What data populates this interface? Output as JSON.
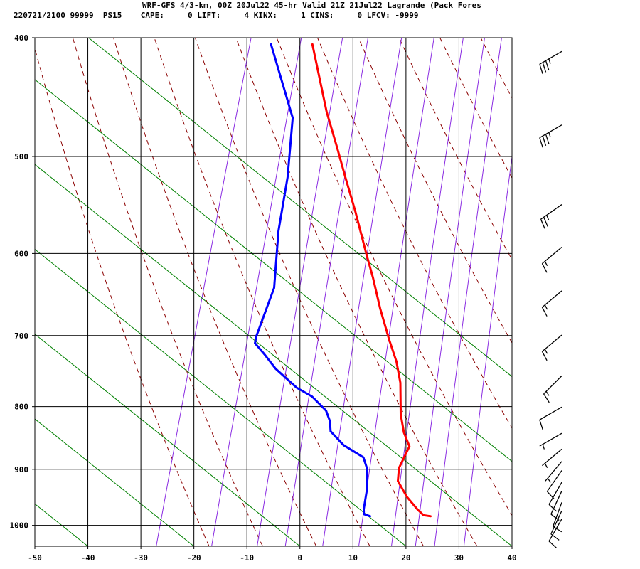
{
  "header": {
    "title": "WRF-GFS 4/3-km, 00Z 20Jul22 45-hr Valid 21Z 21Jul22 Lagrande (Pack Fores",
    "subtitle": "220721/2100 99999  PS15    CAPE:     0 LIFT:     4 KINX:     1 CINS:     0 LFCV: -9999"
  },
  "colors": {
    "temperature": "#ff0000",
    "dewpoint": "#0000ff",
    "dry_adiabat": "#8b0000",
    "moist_adiabat": "#008000",
    "mixing_ratio": "#8a2be2",
    "grid": "#000000",
    "wind_barb": "#000000"
  },
  "chart_data": {
    "type": "line",
    "chart_kind": "skew-T log-P sounding",
    "xlim": [
      -50,
      40
    ],
    "ylim": [
      1040,
      400
    ],
    "y_scale": "log",
    "x_ticks": [
      -50,
      -40,
      -30,
      -20,
      -10,
      0,
      10,
      20,
      30,
      40
    ],
    "x_tick_labels": [
      "-50",
      "-40",
      "-30",
      "-20",
      "-10",
      "0",
      "10",
      "20",
      "30",
      "40"
    ],
    "y_ticks": [
      1000,
      900,
      800,
      700,
      600,
      500,
      400
    ],
    "y_tick_labels": [
      "1000",
      "900",
      "800",
      "700",
      "600",
      "500",
      "400"
    ],
    "grid": true,
    "series": [
      {
        "key": "temperature",
        "points": [
          {
            "p": 983,
            "t": 23
          },
          {
            "p": 981,
            "t": 21.6
          },
          {
            "p": 970,
            "t": 20.1
          },
          {
            "p": 948,
            "t": 17.5
          },
          {
            "p": 920,
            "t": 14.9
          },
          {
            "p": 898,
            "t": 14.4
          },
          {
            "p": 862,
            "t": 15.2
          },
          {
            "p": 840,
            "t": 13.4
          },
          {
            "p": 812,
            "t": 11.8
          },
          {
            "p": 765,
            "t": 10.0
          },
          {
            "p": 735,
            "t": 8.1
          },
          {
            "p": 705,
            "t": 5.5
          },
          {
            "p": 665,
            "t": 2.1
          },
          {
            "p": 628,
            "t": -0.9
          },
          {
            "p": 600,
            "t": -3.5
          },
          {
            "p": 555,
            "t": -7.8
          },
          {
            "p": 520,
            "t": -11.6
          },
          {
            "p": 490,
            "t": -15.0
          },
          {
            "p": 460,
            "t": -18.7
          },
          {
            "p": 405,
            "t": -25.1
          }
        ]
      },
      {
        "key": "dewpoint",
        "points": [
          {
            "p": 983,
            "t": 11.6
          },
          {
            "p": 979,
            "t": 10.3
          },
          {
            "p": 970,
            "t": 10.0
          },
          {
            "p": 932,
            "t": 9.5
          },
          {
            "p": 900,
            "t": 8.5
          },
          {
            "p": 880,
            "t": 7.1
          },
          {
            "p": 860,
            "t": 2.7
          },
          {
            "p": 838,
            "t": -0.5
          },
          {
            "p": 822,
            "t": -1.2
          },
          {
            "p": 806,
            "t": -2.5
          },
          {
            "p": 785,
            "t": -5.9
          },
          {
            "p": 772,
            "t": -9.3
          },
          {
            "p": 745,
            "t": -14.3
          },
          {
            "p": 725,
            "t": -17.2
          },
          {
            "p": 710,
            "t": -19.6
          },
          {
            "p": 700,
            "t": -19.7
          },
          {
            "p": 640,
            "t": -19.0
          },
          {
            "p": 575,
            "t": -21.3
          },
          {
            "p": 520,
            "t": -22.5
          },
          {
            "p": 465,
            "t": -24.8
          },
          {
            "p": 405,
            "t": -32.9
          }
        ]
      }
    ],
    "wind_barbs": [
      {
        "p": 405,
        "dir": 240,
        "spd": 35
      },
      {
        "p": 465,
        "dir": 240,
        "spd": 35
      },
      {
        "p": 540,
        "dir": 235,
        "spd": 25
      },
      {
        "p": 585,
        "dir": 230,
        "spd": 15
      },
      {
        "p": 635,
        "dir": 230,
        "spd": 15
      },
      {
        "p": 690,
        "dir": 230,
        "spd": 15
      },
      {
        "p": 745,
        "dir": 225,
        "spd": 15
      },
      {
        "p": 790,
        "dir": 240,
        "spd": 10
      },
      {
        "p": 830,
        "dir": 240,
        "spd": 5
      },
      {
        "p": 855,
        "dir": 230,
        "spd": 5
      },
      {
        "p": 875,
        "dir": 220,
        "spd": 5
      },
      {
        "p": 890,
        "dir": 215,
        "spd": 10
      },
      {
        "p": 910,
        "dir": 210,
        "spd": 10
      },
      {
        "p": 925,
        "dir": 205,
        "spd": 10
      },
      {
        "p": 945,
        "dir": 200,
        "spd": 10
      },
      {
        "p": 960,
        "dir": 205,
        "spd": 10
      },
      {
        "p": 975,
        "dir": 210,
        "spd": 10
      }
    ],
    "dry_adiabats_theta_c": [
      -20,
      -10,
      0,
      10,
      20,
      30,
      40,
      50,
      60,
      70,
      80,
      90,
      100,
      110,
      120
    ],
    "mixing_ratio_lines_gkg": [
      0.4,
      1,
      2,
      3,
      5,
      8,
      12,
      16,
      20,
      28
    ],
    "moist_adiabat_offsets_c": [
      -80,
      -60,
      -40,
      -20,
      0,
      20,
      40,
      60,
      80
    ]
  }
}
